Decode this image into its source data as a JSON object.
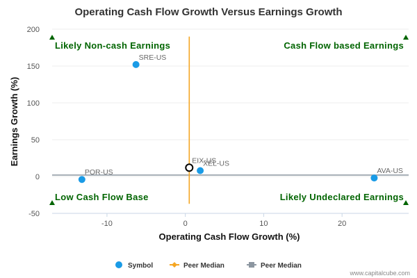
{
  "chart_data": {
    "type": "scatter",
    "title": "Operating Cash Flow Growth Versus Earnings Growth",
    "xlabel": "Operating Cash Flow Growth (%)",
    "ylabel": "Earnings Growth (%)",
    "xlim": [
      -17,
      28.5
    ],
    "ylim": [
      -50,
      200
    ],
    "x_ticks": [
      -10,
      0,
      10,
      20
    ],
    "y_ticks": [
      -50,
      0,
      50,
      100,
      150,
      200
    ],
    "x_tick_labels": [
      "-10",
      "0",
      "10",
      "20"
    ],
    "y_tick_labels": [
      "-50",
      "0",
      "50",
      "100",
      "150",
      "200"
    ],
    "points": [
      {
        "label": "SRE-US",
        "x": -6.3,
        "y": 152
      },
      {
        "label": "EIX-US",
        "x": 0.5,
        "y": 12,
        "highlight": true
      },
      {
        "label": "XEL-US",
        "x": 1.9,
        "y": 8
      },
      {
        "label": "POR-US",
        "x": -13.2,
        "y": -4
      },
      {
        "label": "AVA-US",
        "x": 24.1,
        "y": -2
      }
    ],
    "peer_median_x": 0.5,
    "peer_median_y": 2,
    "peer_median_line_x_range": [
      -17,
      28.5
    ],
    "peer_median_line_y_range": [
      -37,
      190
    ],
    "quadrant_labels": {
      "top_left": "Likely Non-cash Earnings",
      "top_right": "Cash Flow based Earnings",
      "bottom_left": "Low Cash Flow Base",
      "bottom_right": "Likely Undeclared Earnings"
    },
    "legend": [
      {
        "name": "Symbol",
        "color": "#1a9be6"
      },
      {
        "name": "Peer Median",
        "color": "#f5a623"
      },
      {
        "name": "Peer Median",
        "color": "#8c96a0"
      }
    ]
  },
  "colors": {
    "point": "#1a9be6",
    "x_median": "#f5a623",
    "y_median": "#8c96a0",
    "quadrant_text": "#006400",
    "grid": "#dddddd"
  },
  "credit": "www.capitalcube.com"
}
